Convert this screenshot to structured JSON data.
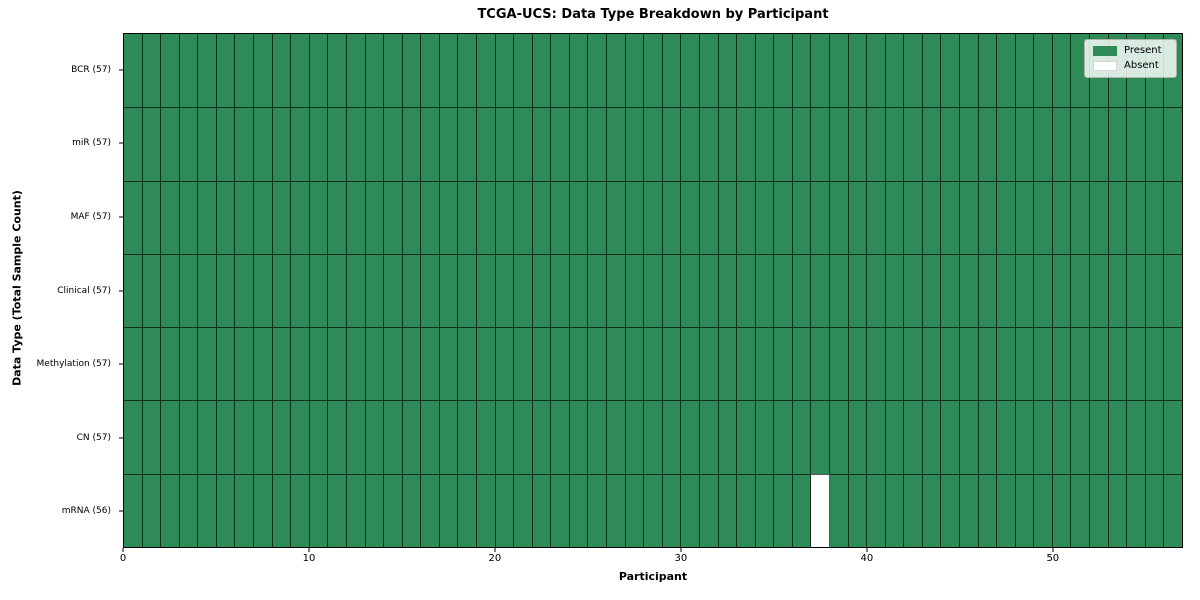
{
  "chart_data": {
    "type": "heatmap",
    "title": "TCGA-UCS: Data Type Breakdown by Participant",
    "xlabel": "Participant",
    "ylabel": "Data Type (Total Sample Count)",
    "x_ticks": [
      0,
      10,
      20,
      30,
      40,
      50
    ],
    "xlim": [
      0,
      57
    ],
    "n_participants": 57,
    "rows": [
      {
        "data_type": "BCR",
        "label": "BCR (57)",
        "sample_count": 57,
        "absent_participant_indices": []
      },
      {
        "data_type": "miR",
        "label": "miR (57)",
        "sample_count": 57,
        "absent_participant_indices": []
      },
      {
        "data_type": "MAF",
        "label": "MAF (57)",
        "sample_count": 57,
        "absent_participant_indices": []
      },
      {
        "data_type": "Clinical",
        "label": "Clinical (57)",
        "sample_count": 57,
        "absent_participant_indices": []
      },
      {
        "data_type": "Methylation",
        "label": "Methylation (57)",
        "sample_count": 57,
        "absent_participant_indices": []
      },
      {
        "data_type": "CN",
        "label": "CN (57)",
        "sample_count": 57,
        "absent_participant_indices": []
      },
      {
        "data_type": "mRNA",
        "label": "mRNA (56)",
        "sample_count": 56,
        "absent_participant_indices": [
          37
        ]
      }
    ],
    "legend": {
      "position": "upper-right",
      "items": [
        {
          "label": "Present",
          "color": "#2e8b57"
        },
        {
          "label": "Absent",
          "color": "#ffffff"
        }
      ]
    },
    "colors": {
      "present": "#2e8b57",
      "absent": "#ffffff",
      "cell_edge": "rgba(0,0,0,0.65)",
      "spine": "#000000",
      "background": "#ffffff"
    },
    "grid": "cell-borders",
    "legend_on": true
  }
}
